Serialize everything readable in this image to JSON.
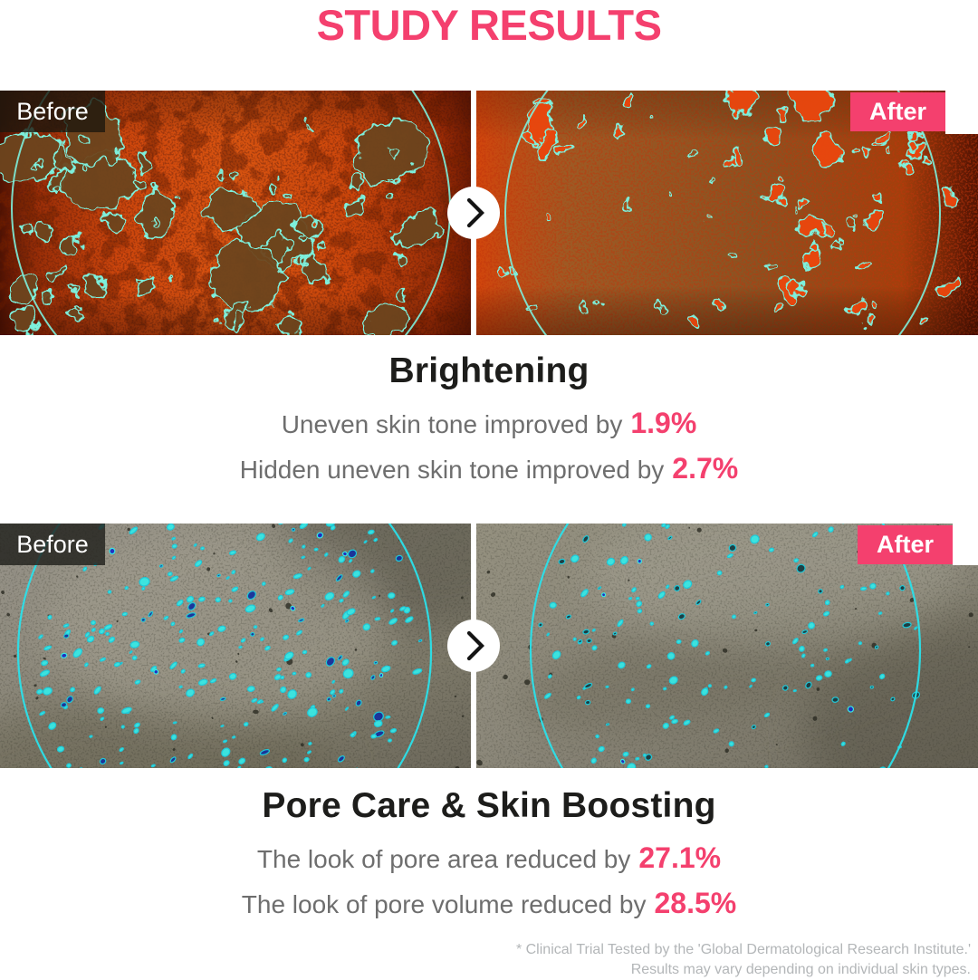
{
  "page": {
    "title": "STUDY RESULTS"
  },
  "colors": {
    "accent_pink": "#f4406e",
    "heading_dark": "#1d1d1b",
    "body_gray": "#6e6e6e",
    "footnote_gray": "#b3b6b8",
    "outline_cyan": "#4fe8d8",
    "before_badge_bg": "rgba(30,24,14,0.8)"
  },
  "icons": {
    "compare_arrow": "chevron-right-icon"
  },
  "sections": [
    {
      "heading": "Brightening",
      "before_label": "Before",
      "after_label": "After",
      "stats": [
        {
          "text": "Uneven skin tone improved by",
          "value": "1.9%"
        },
        {
          "text": "Hidden uneven skin tone improved by",
          "value": "2.7%"
        }
      ]
    },
    {
      "heading": "Pore Care & Skin Boosting",
      "before_label": "Before",
      "after_label": "After",
      "stats": [
        {
          "text": "The look of pore area reduced by",
          "value": "27.1%"
        },
        {
          "text": "The look of pore volume reduced by",
          "value": "28.5%"
        }
      ]
    }
  ],
  "footnote": {
    "line1": "* Clinical Trial Tested by the 'Global Dermatological Research Institute.'",
    "line2": "Results may vary depending on individual skin types."
  }
}
